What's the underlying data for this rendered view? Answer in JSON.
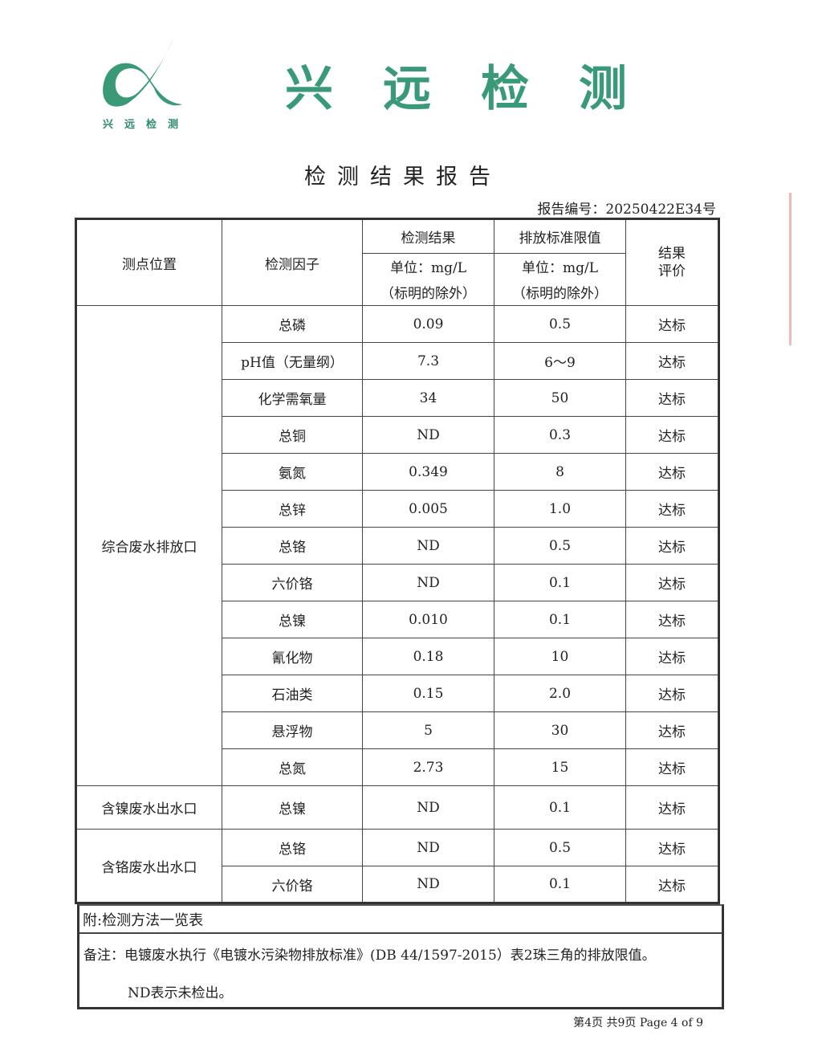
{
  "header": {
    "logo_text": "兴远检测",
    "brand": "兴远检测",
    "title": "检测结果报告",
    "report_no": "报告编号：20250422E34号"
  },
  "table": {
    "headers": {
      "location": "测点位置",
      "factor": "检测因子",
      "result": "检测结果",
      "result_unit": "单位：mg/L",
      "result_note": "（标明的除外）",
      "limit": "排放标准限值",
      "limit_unit": "单位：mg/L",
      "limit_note": "（标明的除外）",
      "evaluation": "结果评价"
    },
    "groups": [
      {
        "location": "综合废水排放口",
        "rows": [
          [
            "总磷",
            "0.09",
            "0.5",
            "达标"
          ],
          [
            "pH值（无量纲）",
            "7.3",
            "6～9",
            "达标"
          ],
          [
            "化学需氧量",
            "34",
            "50",
            "达标"
          ],
          [
            "总铜",
            "ND",
            "0.3",
            "达标"
          ],
          [
            "氨氮",
            "0.349",
            "8",
            "达标"
          ],
          [
            "总锌",
            "0.005",
            "1.0",
            "达标"
          ],
          [
            "总铬",
            "ND",
            "0.5",
            "达标"
          ],
          [
            "六价铬",
            "ND",
            "0.1",
            "达标"
          ],
          [
            "总镍",
            "0.010",
            "0.1",
            "达标"
          ],
          [
            "氰化物",
            "0.18",
            "10",
            "达标"
          ],
          [
            "石油类",
            "0.15",
            "2.0",
            "达标"
          ],
          [
            "悬浮物",
            "5",
            "30",
            "达标"
          ],
          [
            "总氮",
            "2.73",
            "15",
            "达标"
          ]
        ]
      },
      {
        "location": "含镍废水出水口",
        "rows": [
          [
            "总镍",
            "ND",
            "0.1",
            "达标"
          ]
        ]
      },
      {
        "location": "含铬废水出水口",
        "rows": [
          [
            "总铬",
            "ND",
            "0.5",
            "达标"
          ],
          [
            "六价铬",
            "ND",
            "0.1",
            "达标"
          ]
        ]
      }
    ]
  },
  "notes": {
    "attachment": "附:检测方法一览表",
    "remark": "备注：电镀废水执行《电镀水污染物排放标准》(DB 44/1597-2015）表2珠三角的排放限值。",
    "nd": "ND表示未检出。"
  },
  "footer": {
    "page": "第4页 共9页 Page 4 of 9"
  },
  "colors": {
    "brand_green": "#3a9a78"
  }
}
